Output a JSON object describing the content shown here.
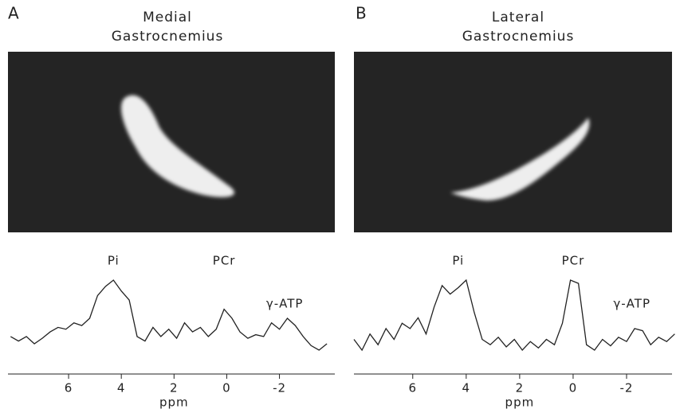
{
  "chart_data": [
    {
      "type": "line",
      "panel_label": "A",
      "title": [
        "Medial",
        "Gastrocnemius"
      ],
      "annotations": [
        {
          "text": "Pi",
          "x": 4.3
        },
        {
          "text": "PCr",
          "x": 0.1
        },
        {
          "text": "γ-ATP",
          "x": -2.2
        }
      ],
      "xlabel": "ppm",
      "xlim": [
        8.3,
        -4.1
      ],
      "xticks": [
        6,
        4,
        2,
        0,
        -2
      ],
      "color": "#222",
      "x": [
        8.2,
        7.9,
        7.6,
        7.3,
        7.0,
        6.7,
        6.4,
        6.1,
        5.8,
        5.5,
        5.2,
        4.9,
        4.6,
        4.3,
        4.0,
        3.7,
        3.4,
        3.1,
        2.8,
        2.5,
        2.2,
        1.9,
        1.6,
        1.3,
        1.0,
        0.7,
        0.4,
        0.1,
        -0.2,
        -0.5,
        -0.8,
        -1.1,
        -1.4,
        -1.7,
        -2.0,
        -2.3,
        -2.6,
        -2.9,
        -3.2,
        -3.5,
        -3.8
      ],
      "values": [
        30,
        25,
        30,
        22,
        28,
        35,
        40,
        38,
        45,
        42,
        50,
        75,
        85,
        92,
        80,
        70,
        30,
        25,
        40,
        30,
        38,
        28,
        45,
        35,
        40,
        30,
        38,
        60,
        50,
        35,
        28,
        32,
        30,
        45,
        38,
        50,
        42,
        30,
        20,
        15,
        22
      ]
    },
    {
      "type": "line",
      "panel_label": "B",
      "title": [
        "Lateral",
        "Gastrocnemius"
      ],
      "annotations": [
        {
          "text": "Pi",
          "x": 4.3
        },
        {
          "text": "PCr",
          "x": 0.0
        },
        {
          "text": "γ-ATP",
          "x": -2.2
        }
      ],
      "xlabel": "ppm",
      "xlim": [
        8.2,
        -3.7
      ],
      "xticks": [
        6,
        4,
        2,
        0,
        -2
      ],
      "color": "#222",
      "x": [
        8.2,
        7.9,
        7.6,
        7.3,
        7.0,
        6.7,
        6.4,
        6.1,
        5.8,
        5.5,
        5.2,
        4.9,
        4.6,
        4.3,
        4.0,
        3.7,
        3.4,
        3.1,
        2.8,
        2.5,
        2.2,
        1.9,
        1.6,
        1.3,
        1.0,
        0.7,
        0.4,
        0.1,
        -0.2,
        -0.5,
        -0.8,
        -1.1,
        -1.4,
        -1.7,
        -2.0,
        -2.3,
        -2.6,
        -2.9,
        -3.2,
        -3.5,
        -3.8
      ],
      "values": [
        40,
        30,
        45,
        35,
        50,
        40,
        55,
        50,
        60,
        45,
        70,
        90,
        82,
        88,
        95,
        65,
        40,
        35,
        42,
        33,
        40,
        30,
        38,
        32,
        40,
        35,
        55,
        95,
        92,
        35,
        30,
        40,
        34,
        42,
        38,
        50,
        48,
        35,
        42,
        38,
        45
      ]
    }
  ]
}
